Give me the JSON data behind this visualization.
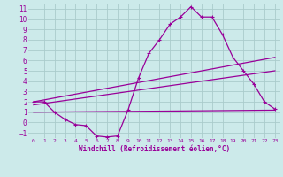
{
  "xlabel": "Windchill (Refroidissement éolien,°C)",
  "bg_color": "#cceaea",
  "line_color": "#990099",
  "grid_color": "#aacccc",
  "xlim": [
    -0.5,
    23.5
  ],
  "ylim": [
    -1.5,
    11.5
  ],
  "xticks": [
    0,
    1,
    2,
    3,
    4,
    5,
    6,
    7,
    8,
    9,
    10,
    11,
    12,
    13,
    14,
    15,
    16,
    17,
    18,
    19,
    20,
    21,
    22,
    23
  ],
  "yticks": [
    -1,
    0,
    1,
    2,
    3,
    4,
    5,
    6,
    7,
    8,
    9,
    10,
    11
  ],
  "series1_x": [
    0,
    1,
    2,
    3,
    4,
    5,
    6,
    7,
    8,
    9,
    10,
    11,
    12,
    13,
    14,
    15,
    16,
    17,
    18,
    19,
    20,
    21,
    22,
    23
  ],
  "series1_y": [
    2.0,
    2.0,
    1.0,
    0.3,
    -0.2,
    -0.3,
    -1.3,
    -1.4,
    -1.3,
    1.2,
    4.3,
    6.7,
    8.0,
    9.5,
    10.2,
    11.2,
    10.2,
    10.2,
    8.5,
    6.3,
    5.0,
    3.7,
    2.0,
    1.3
  ],
  "series2_x": [
    0,
    23
  ],
  "series2_y": [
    1.0,
    1.2
  ],
  "series3_x": [
    0,
    23
  ],
  "series3_y": [
    2.0,
    6.3
  ],
  "series4_x": [
    0,
    23
  ],
  "series4_y": [
    1.7,
    5.0
  ]
}
